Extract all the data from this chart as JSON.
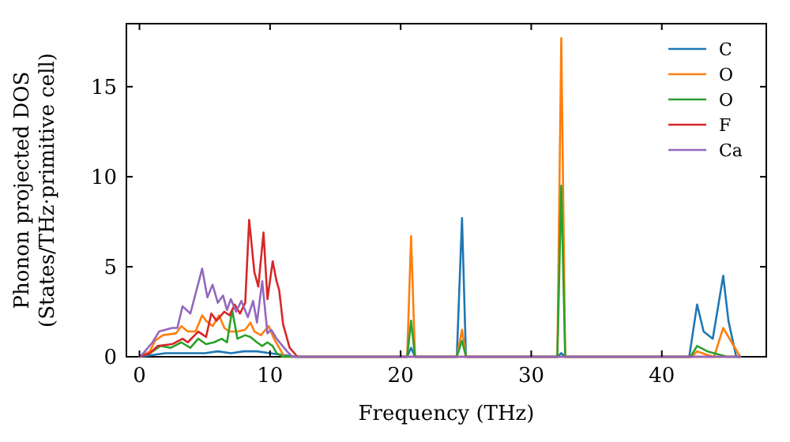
{
  "chart_data": {
    "type": "line",
    "xlabel": "Frequency (THz)",
    "ylabel": "Phonon projected DOS\n(States/THz·primitive cell)",
    "xlim": [
      -1,
      48
    ],
    "ylim": [
      0,
      18.5
    ],
    "xticks": [
      0,
      10,
      20,
      30,
      40
    ],
    "yticks": [
      0,
      5,
      10,
      15
    ],
    "legend": "top right",
    "series": [
      {
        "name": "C",
        "color": "#1f77b4",
        "x": [
          0,
          1,
          2,
          4,
          5,
          6,
          7,
          8,
          9,
          10,
          11,
          12,
          20.5,
          20.8,
          21.1,
          24.3,
          24.7,
          25,
          32,
          32.3,
          32.6,
          42.1,
          42.7,
          43.2,
          43.9,
          44.7,
          45.1,
          45.7,
          46
        ],
        "values": [
          0,
          0.1,
          0.2,
          0.2,
          0.2,
          0.3,
          0.2,
          0.3,
          0.3,
          0.2,
          0.1,
          0,
          0,
          0.5,
          0,
          0,
          7.7,
          0,
          0,
          0.2,
          0,
          0,
          2.9,
          1.4,
          1.0,
          4.5,
          2.0,
          0,
          0
        ]
      },
      {
        "name": "O",
        "color": "#ff7f0e",
        "x": [
          0,
          0.8,
          1.2,
          1.8,
          2.8,
          3.2,
          3.7,
          4.3,
          4.8,
          5.1,
          5.6,
          6.1,
          6.5,
          6.9,
          7.5,
          8.1,
          8.5,
          8.8,
          9.3,
          9.9,
          10.3,
          10.7,
          11.1,
          20.5,
          20.8,
          21.1,
          24.3,
          24.7,
          25,
          32,
          32.3,
          32.6,
          42.3,
          42.7,
          43.5,
          44,
          44.7,
          46
        ],
        "values": [
          0,
          0.3,
          0.9,
          1.2,
          1.3,
          1.7,
          1.4,
          1.4,
          2.3,
          2.0,
          1.7,
          2.3,
          1.6,
          1.4,
          1.4,
          1.5,
          1.9,
          1.4,
          1.2,
          1.7,
          1.0,
          0.5,
          0,
          0,
          6.7,
          0,
          0,
          1.5,
          0,
          0,
          17.7,
          0,
          0,
          0.3,
          0.1,
          0,
          1.6,
          0
        ]
      },
      {
        "name": "O",
        "color": "#2ca02c",
        "x": [
          0,
          0.8,
          1.6,
          2.4,
          3.2,
          3.9,
          4.5,
          5.1,
          5.7,
          6.3,
          6.7,
          7.1,
          7.5,
          8.1,
          8.5,
          9.0,
          9.4,
          9.8,
          10.2,
          10.5,
          11,
          20.5,
          20.8,
          21.1,
          24.3,
          24.7,
          25,
          32,
          32.3,
          32.6,
          42.2,
          42.7,
          43.5,
          44.5,
          45,
          46
        ],
        "values": [
          0,
          0.2,
          0.6,
          0.5,
          0.8,
          0.5,
          1.0,
          0.7,
          0.8,
          1.0,
          0.8,
          2.6,
          1.0,
          1.2,
          1.1,
          0.8,
          0.6,
          0.8,
          0.6,
          0.2,
          0,
          0,
          2.0,
          0,
          0,
          0.9,
          0,
          0,
          9.5,
          0,
          0,
          0.6,
          0.3,
          0.1,
          0,
          0
        ]
      },
      {
        "name": "F",
        "color": "#d62728",
        "x": [
          0,
          0.8,
          1.4,
          2.5,
          3.3,
          3.7,
          4.5,
          5.1,
          5.5,
          5.9,
          6.5,
          6.9,
          7.3,
          7.7,
          8.1,
          8.4,
          8.8,
          9.1,
          9.5,
          9.8,
          10.2,
          10.5,
          10.7,
          11.0,
          11.5,
          12.1,
          46
        ],
        "values": [
          0,
          0.2,
          0.6,
          0.7,
          1.0,
          0.8,
          1.4,
          1.1,
          2.4,
          2.0,
          2.5,
          2.3,
          2.9,
          2.4,
          3.0,
          7.6,
          4.7,
          3.9,
          6.9,
          3.2,
          5.3,
          4.2,
          3.7,
          1.8,
          0.5,
          0,
          0
        ]
      },
      {
        "name": "Ca",
        "color": "#9467bd",
        "x": [
          0,
          0.3,
          1.0,
          1.5,
          2.5,
          2.9,
          3.3,
          3.9,
          4.8,
          5.2,
          5.6,
          6.0,
          6.4,
          6.7,
          7.0,
          7.4,
          7.8,
          8.3,
          8.7,
          9.0,
          9.4,
          9.8,
          10.1,
          10.5,
          11.3,
          11.7,
          46
        ],
        "values": [
          0,
          0.2,
          0.8,
          1.4,
          1.6,
          1.6,
          2.8,
          2.4,
          4.9,
          3.3,
          4.0,
          3.0,
          3.4,
          2.6,
          3.2,
          2.5,
          3.1,
          2.2,
          3.1,
          1.9,
          4.2,
          1.3,
          1.5,
          1.0,
          0.3,
          0,
          0
        ]
      }
    ]
  }
}
